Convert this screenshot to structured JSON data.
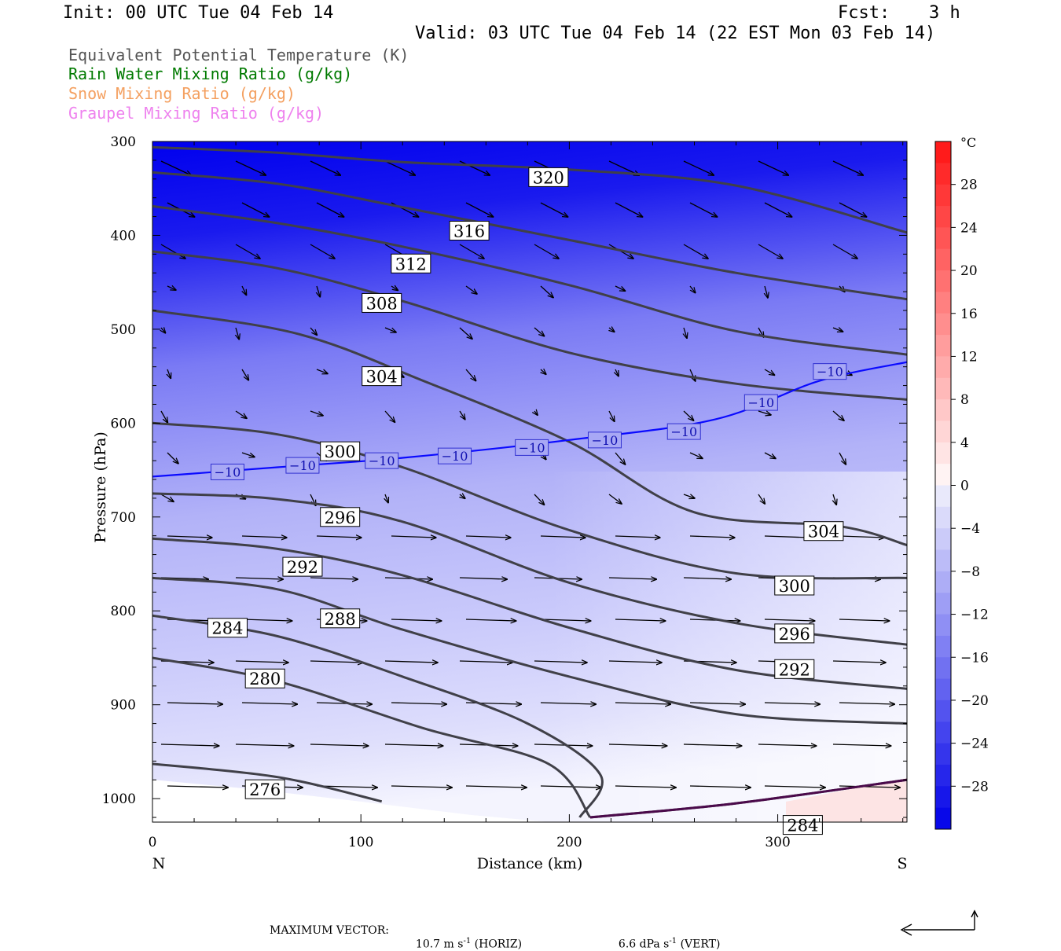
{
  "header": {
    "init": "Init: 00 UTC Tue 04 Feb 14",
    "fcst_label": "Fcst:",
    "fcst_value": "3 h",
    "valid": "Valid: 03 UTC Tue 04 Feb 14 (22 EST Mon 03 Feb 14)"
  },
  "legend": [
    {
      "text": "Equivalent Potential Temperature (K)",
      "color": "#555555"
    },
    {
      "text": "Rain Water Mixing Ratio (g/kg)",
      "color": "#007a00"
    },
    {
      "text": "Snow Mixing Ratio (g/kg)",
      "color": "#f4a060"
    },
    {
      "text": "Graupel Mixing Ratio (g/kg)",
      "color": "#ee82ee"
    }
  ],
  "footer": {
    "max_vector_label": "MAXIMUM VECTOR:",
    "horiz_value": "10.7 m s",
    "horiz_exp": "-1",
    "horiz_tag": "(HORIZ)",
    "vert_value": "6.6 dPa s",
    "vert_exp": "-1",
    "vert_tag": "(VERT)"
  },
  "chart_data": {
    "type": "contour",
    "xlabel": "Distance (km)",
    "ylabel": "Pressure (hPa)",
    "x_ticks": [
      0,
      100,
      200,
      300
    ],
    "y_ticks": [
      300,
      400,
      500,
      600,
      700,
      800,
      900,
      1000
    ],
    "xlim": [
      0,
      362
    ],
    "ylim": [
      1025,
      300
    ],
    "x_end_labels": {
      "left": "N",
      "right": "S"
    },
    "colorbar": {
      "unit": "°C",
      "ticks": [
        28,
        24,
        20,
        16,
        12,
        8,
        4,
        0,
        -4,
        -8,
        -12,
        -16,
        -20,
        -24,
        -28
      ],
      "range": [
        -32,
        32
      ]
    },
    "theta_e_contours": [
      {
        "level": 320,
        "points": [
          [
            0,
            306
          ],
          [
            60,
            312
          ],
          [
            120,
            322
          ],
          [
            200,
            330
          ],
          [
            280,
            347
          ],
          [
            362,
            397
          ]
        ]
      },
      {
        "level": 316,
        "points": [
          [
            0,
            333
          ],
          [
            60,
            345
          ],
          [
            120,
            370
          ],
          [
            200,
            405
          ],
          [
            280,
            440
          ],
          [
            362,
            468
          ]
        ]
      },
      {
        "level": 312,
        "points": [
          [
            0,
            369
          ],
          [
            60,
            387
          ],
          [
            120,
            412
          ],
          [
            200,
            453
          ],
          [
            280,
            502
          ],
          [
            362,
            527
          ]
        ]
      },
      {
        "level": 308,
        "points": [
          [
            0,
            417
          ],
          [
            60,
            435
          ],
          [
            120,
            470
          ],
          [
            200,
            525
          ],
          [
            280,
            558
          ],
          [
            362,
            575
          ]
        ]
      },
      {
        "level": 304,
        "points": [
          [
            0,
            480
          ],
          [
            70,
            505
          ],
          [
            130,
            555
          ],
          [
            200,
            620
          ],
          [
            260,
            695
          ],
          [
            330,
            710
          ],
          [
            362,
            730
          ]
        ]
      },
      {
        "level": 300,
        "points": [
          [
            0,
            600
          ],
          [
            60,
            612
          ],
          [
            120,
            647
          ],
          [
            200,
            714
          ],
          [
            280,
            760
          ],
          [
            362,
            765
          ]
        ]
      },
      {
        "level": 296,
        "points": [
          [
            0,
            675
          ],
          [
            60,
            681
          ],
          [
            120,
            705
          ],
          [
            200,
            770
          ],
          [
            280,
            813
          ],
          [
            362,
            836
          ]
        ]
      },
      {
        "level": 292,
        "points": [
          [
            0,
            723
          ],
          [
            60,
            734
          ],
          [
            120,
            762
          ],
          [
            200,
            818
          ],
          [
            280,
            863
          ],
          [
            362,
            883
          ]
        ]
      },
      {
        "level": 288,
        "points": [
          [
            0,
            765
          ],
          [
            60,
            777
          ],
          [
            120,
            820
          ],
          [
            200,
            870
          ],
          [
            280,
            910
          ],
          [
            362,
            920
          ]
        ]
      },
      {
        "level": 284,
        "points": [
          [
            0,
            805
          ],
          [
            60,
            827
          ],
          [
            120,
            870
          ],
          [
            180,
            920
          ],
          [
            215,
            975
          ],
          [
            205,
            1020
          ]
        ]
      },
      {
        "level": 280,
        "points": [
          [
            0,
            850
          ],
          [
            60,
            875
          ],
          [
            130,
            925
          ],
          [
            190,
            963
          ],
          [
            210,
            1020
          ]
        ]
      },
      {
        "level": 276,
        "points": [
          [
            0,
            963
          ],
          [
            60,
            977
          ],
          [
            110,
            1003
          ]
        ]
      },
      {
        "level": 284,
        "points": [
          [
            210,
            1020
          ],
          [
            280,
            1005
          ],
          [
            362,
            980
          ]
        ]
      }
    ],
    "temperature_contour": {
      "level": -10,
      "points": [
        [
          0,
          657
        ],
        [
          60,
          647
        ],
        [
          120,
          637
        ],
        [
          200,
          618
        ],
        [
          270,
          596
        ],
        [
          320,
          555
        ],
        [
          362,
          535
        ]
      ]
    }
  }
}
